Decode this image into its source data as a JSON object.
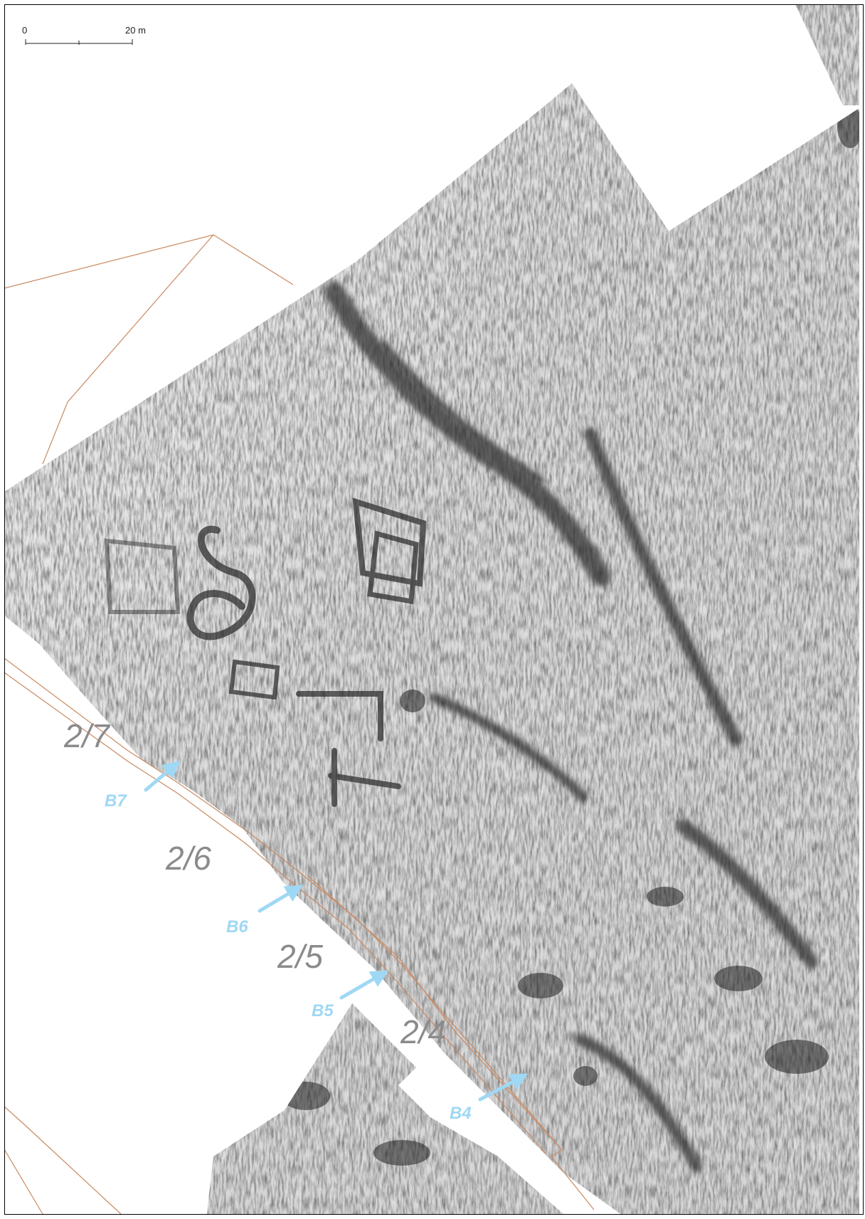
{
  "scale_bar": {
    "start_label": "0",
    "end_label": "20 m"
  },
  "plot_labels": [
    {
      "text": "2/7"
    },
    {
      "text": "2/6"
    },
    {
      "text": "2/5"
    },
    {
      "text": "2/4"
    }
  ],
  "trench_markers": [
    {
      "text": "B7"
    },
    {
      "text": "B6"
    },
    {
      "text": "B5"
    },
    {
      "text": "B4"
    }
  ],
  "colors": {
    "frame": "#000000",
    "boundary": "#c98a62",
    "marker": "#9fd8f4",
    "plot_label": "#8b8b8b",
    "survey_light": "#f4f4f4",
    "survey_dark": "#2c2c2c"
  }
}
